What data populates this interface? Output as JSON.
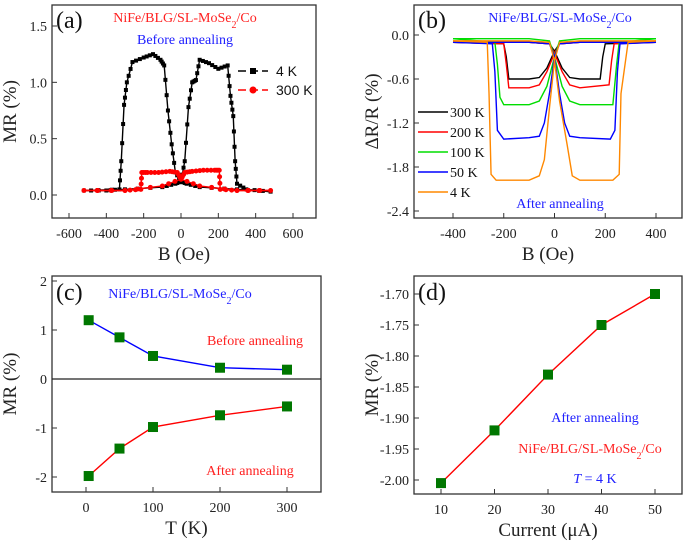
{
  "chart_data": [
    {
      "panel_label": "(a)",
      "type": "line",
      "xlabel": "B (Oe)",
      "ylabel": "MR (%)",
      "xlim": [
        -700,
        750
      ],
      "ylim": [
        -0.2,
        1.7
      ],
      "xticks": [
        -600,
        -400,
        -200,
        0,
        200,
        400,
        600
      ],
      "yticks": [
        "0.0",
        "0.5",
        "1.0",
        "1.5"
      ],
      "annotations": [
        {
          "parts": [
            "NiFe/BLG/SL-MoSe",
            "2",
            "/Co"
          ],
          "color": "#ff2020"
        },
        {
          "parts": [
            "Before annealing"
          ],
          "color": "#2020ff"
        }
      ],
      "legend_placement": "right",
      "series": [
        {
          "name": "4 K",
          "color": "#000000",
          "marker": "square",
          "branches": [
            {
              "x": [
                480,
                300,
                100,
                30,
                0,
                -30,
                -50,
                -70,
                -90,
                -110,
                -150,
                -200,
                -260,
                -290,
                -305,
                -320,
                -330,
                -400,
                -520
              ],
              "y": [
                0.03,
                0.05,
                0.07,
                0.1,
                0.12,
                0.2,
                0.45,
                0.75,
                1.15,
                1.2,
                1.25,
                1.22,
                1.18,
                1.0,
                0.8,
                0.3,
                0.05,
                0.04,
                0.04
              ]
            },
            {
              "x": [
                -520,
                -300,
                -100,
                -30,
                0,
                20,
                40,
                60,
                80,
                100,
                150,
                200,
                250,
                265,
                280,
                290,
                300,
                350,
                480
              ],
              "y": [
                0.04,
                0.05,
                0.07,
                0.1,
                0.12,
                0.3,
                0.78,
                1.0,
                1.02,
                1.2,
                1.17,
                1.12,
                1.15,
                0.88,
                0.7,
                0.3,
                0.1,
                0.05,
                0.03
              ]
            }
          ]
        },
        {
          "name": "300 K",
          "color": "#ff0000",
          "marker": "circle",
          "branches": [
            {
              "x": [
                480,
                300,
                100,
                0,
                -20,
                -60,
                -120,
                -180,
                -210,
                -215,
                -300,
                -520
              ],
              "y": [
                0.04,
                0.04,
                0.08,
                0.14,
                0.2,
                0.21,
                0.2,
                0.2,
                0.2,
                0.05,
                0.04,
                0.04
              ]
            },
            {
              "x": [
                -520,
                -300,
                -100,
                0,
                20,
                60,
                120,
                180,
                205,
                210,
                300,
                480
              ],
              "y": [
                0.04,
                0.04,
                0.08,
                0.14,
                0.2,
                0.21,
                0.22,
                0.22,
                0.22,
                0.05,
                0.04,
                0.04
              ]
            }
          ]
        }
      ]
    },
    {
      "panel_label": "(b)",
      "type": "line",
      "xlabel": "B (Oe)",
      "ylabel": "ΔR/R (%)",
      "xlim": [
        -550,
        420
      ],
      "ylim": [
        -2.6,
        0.35
      ],
      "xticks": [
        -400,
        -200,
        0,
        200,
        400
      ],
      "yticks": [
        "0.0",
        "-0.6",
        "-1.2",
        "-1.8",
        "-2.4"
      ],
      "annotations": [
        {
          "parts": [
            "NiFe/BLG/SL-MoSe",
            "2",
            "/Co"
          ],
          "color": "#2020ff"
        },
        {
          "parts": [
            "After annealing"
          ],
          "color": "#2020ff"
        }
      ],
      "legend_placement": "left",
      "series": [
        {
          "name": "300 K",
          "color": "#000000",
          "branches": [
            {
              "x": [
                400,
                100,
                20,
                0,
                -30,
                -60,
                -100,
                -180,
                -190,
                -200,
                -400
              ],
              "y": [
                -0.1,
                -0.1,
                -0.12,
                -0.22,
                -0.45,
                -0.58,
                -0.6,
                -0.6,
                -0.3,
                -0.12,
                -0.1
              ]
            },
            {
              "x": [
                -400,
                -100,
                -20,
                0,
                30,
                60,
                100,
                180,
                190,
                200,
                400
              ],
              "y": [
                -0.1,
                -0.1,
                -0.12,
                -0.22,
                -0.45,
                -0.58,
                -0.6,
                -0.6,
                -0.3,
                -0.12,
                -0.1
              ]
            }
          ]
        },
        {
          "name": "200 K",
          "color": "#ff0000",
          "branches": [
            {
              "x": [
                400,
                100,
                20,
                0,
                -30,
                -60,
                -100,
                -180,
                -190,
                -200,
                -400
              ],
              "y": [
                -0.1,
                -0.1,
                -0.12,
                -0.25,
                -0.5,
                -0.68,
                -0.72,
                -0.72,
                -0.4,
                -0.12,
                -0.1
              ]
            },
            {
              "x": [
                -400,
                -100,
                -20,
                0,
                30,
                60,
                100,
                215,
                225,
                235,
                400
              ],
              "y": [
                -0.1,
                -0.1,
                -0.12,
                -0.25,
                -0.5,
                -0.68,
                -0.72,
                -0.68,
                -0.35,
                -0.12,
                -0.1
              ]
            }
          ]
        },
        {
          "name": "100 K",
          "color": "#00dd00",
          "branches": [
            {
              "x": [
                400,
                100,
                20,
                0,
                -30,
                -60,
                -100,
                -200,
                -215,
                -225,
                -235,
                -400
              ],
              "y": [
                -0.05,
                -0.05,
                -0.08,
                -0.3,
                -0.7,
                -0.9,
                -0.95,
                -0.95,
                -0.85,
                -0.4,
                -0.1,
                -0.05
              ]
            },
            {
              "x": [
                -400,
                -100,
                -20,
                0,
                30,
                60,
                100,
                230,
                245,
                255,
                400
              ],
              "y": [
                -0.05,
                -0.05,
                -0.08,
                -0.3,
                -0.7,
                -0.9,
                -0.95,
                -0.95,
                -0.4,
                -0.1,
                -0.05
              ]
            }
          ]
        },
        {
          "name": "50 K",
          "color": "#0000ff",
          "branches": [
            {
              "x": [
                400,
                100,
                20,
                0,
                -20,
                -40,
                -60,
                -100,
                -200,
                -225,
                -235,
                -245,
                -400
              ],
              "y": [
                -0.1,
                -0.1,
                -0.12,
                -0.3,
                -0.8,
                -1.2,
                -1.38,
                -1.4,
                -1.42,
                -1.3,
                -0.5,
                -0.12,
                -0.1
              ]
            },
            {
              "x": [
                -400,
                -100,
                -20,
                0,
                20,
                40,
                60,
                100,
                220,
                238,
                248,
                258,
                400
              ],
              "y": [
                -0.1,
                -0.1,
                -0.12,
                -0.3,
                -0.8,
                -1.2,
                -1.38,
                -1.4,
                -1.42,
                -1.3,
                -0.5,
                -0.12,
                -0.1
              ]
            }
          ]
        },
        {
          "name": "4 K",
          "color": "#ff8800",
          "branches": [
            {
              "x": [
                400,
                100,
                20,
                0,
                -20,
                -40,
                -60,
                -100,
                -230,
                -250,
                -258,
                -265,
                -400
              ],
              "y": [
                -0.08,
                -0.08,
                -0.1,
                -0.35,
                -1.0,
                -1.7,
                -1.92,
                -1.98,
                -1.98,
                -1.9,
                -0.8,
                -0.1,
                -0.08
              ]
            },
            {
              "x": [
                -400,
                -100,
                -20,
                0,
                20,
                50,
                70,
                100,
                230,
                255,
                262,
                290,
                400
              ],
              "y": [
                -0.08,
                -0.08,
                -0.1,
                -0.35,
                -0.9,
                -1.5,
                -1.92,
                -1.98,
                -1.98,
                -1.9,
                -0.8,
                -0.1,
                -0.08
              ]
            }
          ]
        }
      ]
    },
    {
      "panel_label": "(c)",
      "type": "line",
      "xlabel": "T (K)",
      "ylabel": "MR (%)",
      "xlim": [
        -50,
        350
      ],
      "ylim": [
        -2.3,
        2.1
      ],
      "xticks": [
        0,
        100,
        200,
        300
      ],
      "yticks": [
        2,
        1,
        0,
        -1,
        -2
      ],
      "zero_line": true,
      "annotations": [
        {
          "parts": [
            "NiFe/BLG/SL-MoSe",
            "2",
            "/Co"
          ],
          "color": "#2020ff"
        },
        {
          "parts": [
            "Before annealing"
          ],
          "color": "#ff2020"
        },
        {
          "parts": [
            "After annealing"
          ],
          "color": "#ff2020"
        }
      ],
      "x": [
        4,
        50,
        100,
        200,
        300
      ],
      "series": [
        {
          "label": "Before annealing",
          "line_color": "#0000ff",
          "marker_color": "#007700",
          "values": [
            1.2,
            0.85,
            0.47,
            0.23,
            0.19
          ]
        },
        {
          "label": "After annealing",
          "line_color": "#ff0000",
          "marker_color": "#007700",
          "values": [
            -1.98,
            -1.42,
            -0.98,
            -0.74,
            -0.56
          ]
        }
      ]
    },
    {
      "panel_label": "(d)",
      "type": "line",
      "xlabel": "Current (μA)",
      "ylabel": "MR (%)",
      "xlim": [
        5,
        55
      ],
      "ylim": [
        -2.025,
        -1.67
      ],
      "xticks": [
        10,
        20,
        30,
        40,
        50
      ],
      "yticks": [
        "-1.70",
        "-1.75",
        "-1.80",
        "-1.85",
        "-1.90",
        "-1.95",
        "-2.00"
      ],
      "annotations": [
        {
          "parts": [
            "After annealing"
          ],
          "color": "#2020ff"
        },
        {
          "parts": [
            "NiFe/BLG/SL-MoSe",
            "2",
            "/Co"
          ],
          "color": "#ff2020"
        },
        {
          "parts": [
            "T",
            " = 4 K"
          ],
          "color": "#2020ff"
        }
      ],
      "x": [
        10,
        20,
        30,
        40,
        50
      ],
      "series": [
        {
          "line_color": "#ff0000",
          "marker_color": "#007700",
          "values": [
            -2.005,
            -1.92,
            -1.83,
            -1.75,
            -1.7
          ]
        }
      ]
    }
  ]
}
